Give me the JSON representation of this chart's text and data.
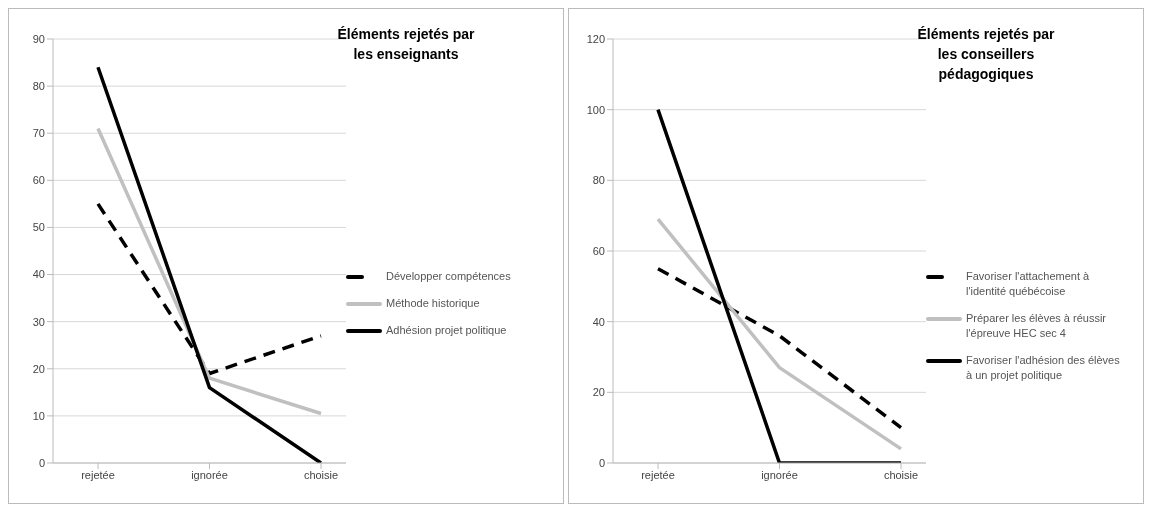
{
  "chart_data": [
    {
      "type": "line",
      "title": "Éléments rejetés par les enseignants",
      "categories": [
        "rejetée",
        "ignorée",
        "choisie"
      ],
      "ylim": [
        0,
        90
      ],
      "yticks": [
        0,
        10,
        20,
        30,
        40,
        50,
        60,
        70,
        80,
        90
      ],
      "grid": "y",
      "legend": "right",
      "marker": "none",
      "series": [
        {
          "name": "Développer compétences",
          "color": "#000000",
          "line_style": "dashed",
          "values": [
            55,
            19,
            27
          ]
        },
        {
          "name": "Méthode historique",
          "color": "#c0c0c0",
          "line_style": "solid",
          "values": [
            71,
            18,
            10.5
          ]
        },
        {
          "name": "Adhésion projet politique",
          "color": "#000000",
          "line_style": "solid",
          "values": [
            84,
            16,
            0
          ]
        }
      ]
    },
    {
      "type": "line",
      "title": "Éléments rejetés par les conseillers pédagogiques",
      "categories": [
        "rejetée",
        "ignorée",
        "choisie"
      ],
      "ylim": [
        0,
        120
      ],
      "yticks": [
        0,
        20,
        40,
        60,
        80,
        100,
        120
      ],
      "grid": "y",
      "legend": "right",
      "marker": "none",
      "series": [
        {
          "name": "Favoriser l'attachement à l'identité québécoise",
          "color": "#000000",
          "line_style": "dashed",
          "values": [
            55,
            36,
            10
          ]
        },
        {
          "name": "Préparer les élèves à réussir l'épreuve HEC sec 4",
          "color": "#c0c0c0",
          "line_style": "solid",
          "values": [
            69,
            27,
            4
          ]
        },
        {
          "name": "Favoriser l'adhésion des élèves à un projet politique",
          "color": "#000000",
          "line_style": "solid",
          "values": [
            100,
            0,
            0
          ]
        }
      ]
    }
  ]
}
